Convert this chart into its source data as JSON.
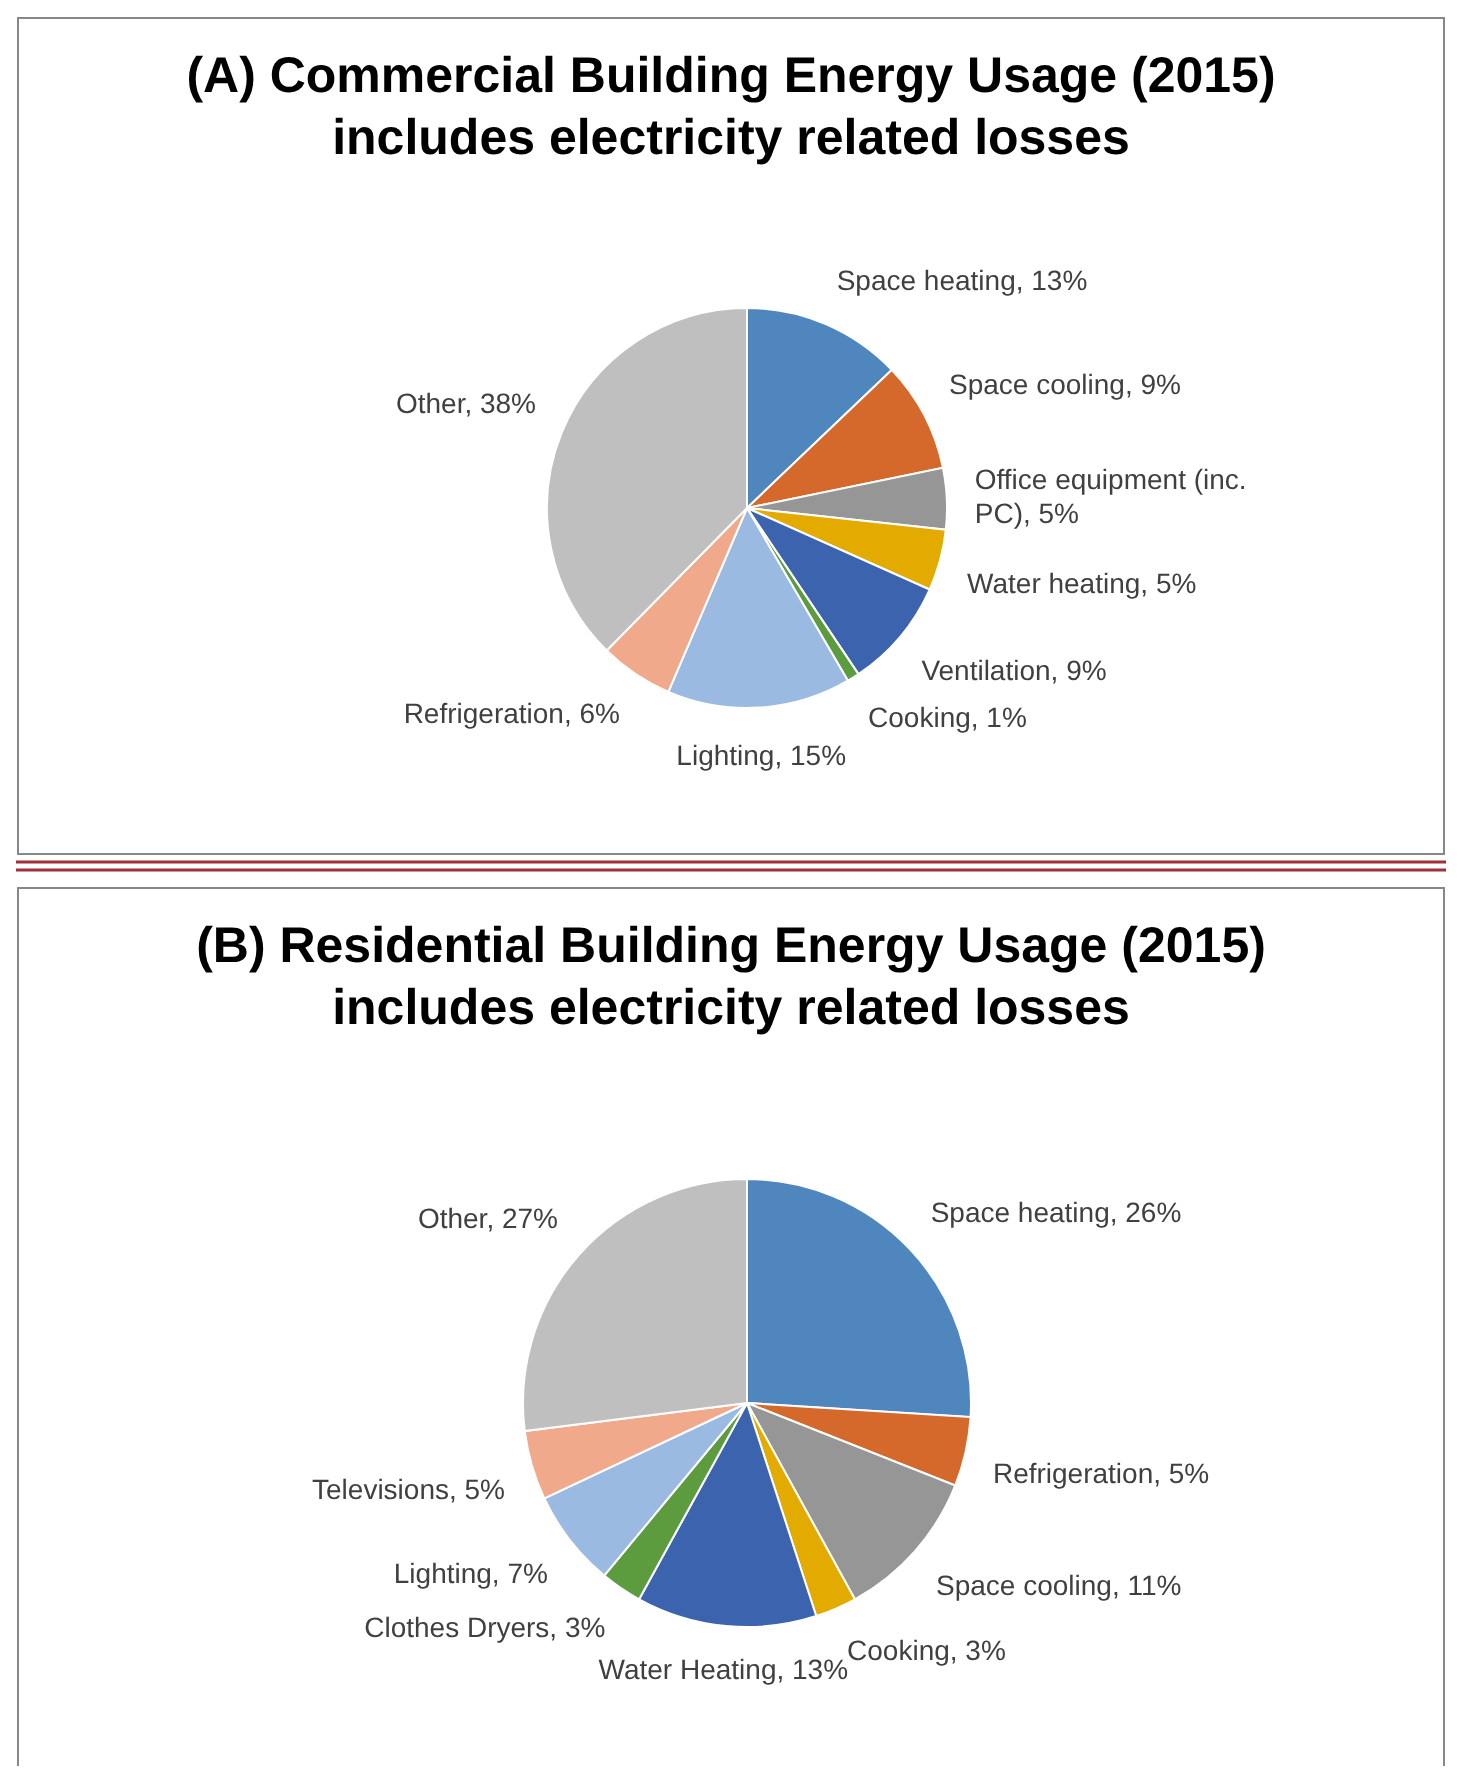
{
  "chart_data": [
    {
      "type": "pie",
      "title": "(A) Commercial Building Energy Usage (2015)",
      "subtitle": "includes electricity related losses",
      "categories": [
        "Space heating",
        "Space cooling",
        "Office equipment (inc. PC)",
        "Water heating",
        "Ventilation",
        "Cooking",
        "Lighting",
        "Refrigeration",
        "Other"
      ],
      "values": [
        13,
        9,
        5,
        5,
        9,
        1,
        15,
        6,
        38
      ],
      "value_labels": [
        "13%",
        "9%",
        "5%",
        "5%",
        "9%",
        "1%",
        "15%",
        "6%",
        "38%"
      ],
      "colors": [
        "#4f86be",
        "#d5692b",
        "#969696",
        "#e3aa00",
        "#3c64ae",
        "#5d9b3f",
        "#9bbae2",
        "#f1a98c",
        "#bfbfbf"
      ]
    },
    {
      "type": "pie",
      "title": "(B) Residential Building Energy Usage (2015)",
      "subtitle": "includes electricity related losses",
      "categories": [
        "Space heating",
        "Refrigeration",
        "Space cooling",
        "Cooking",
        "Water Heating",
        "Clothes Dryers",
        "Lighting",
        "Televisions",
        "Other"
      ],
      "values": [
        26,
        5,
        11,
        3,
        13,
        3,
        7,
        5,
        27
      ],
      "value_labels": [
        "26%",
        "5%",
        "11%",
        "3%",
        "13%",
        "3%",
        "7%",
        "5%",
        "27%"
      ],
      "colors": [
        "#4f86be",
        "#d5692b",
        "#969696",
        "#e3aa00",
        "#3c64ae",
        "#5d9b3f",
        "#9bbae2",
        "#f1a98c",
        "#bfbfbf"
      ]
    }
  ]
}
